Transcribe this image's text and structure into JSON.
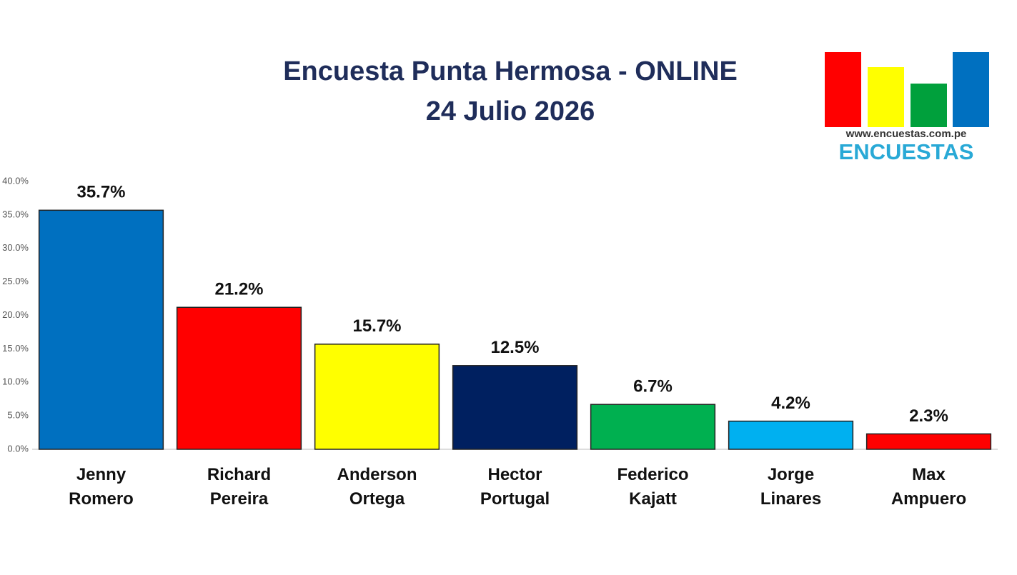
{
  "chart_data": {
    "type": "bar",
    "title": "Encuesta Punta Hermosa - ONLINE",
    "subtitle": "24 Julio 2026",
    "categories": [
      "Jenny Romero",
      "Richard Pereira",
      "Anderson Ortega",
      "Hector Portugal",
      "Federico Kajatt",
      "Jorge Linares",
      "Max Ampuero"
    ],
    "values": [
      35.7,
      21.2,
      15.7,
      12.5,
      6.7,
      4.2,
      2.3
    ],
    "value_labels": [
      "35.7%",
      "21.2%",
      "15.7%",
      "12.5%",
      "6.7%",
      "4.2%",
      "2.3%"
    ],
    "colors": [
      "#0070c0",
      "#ff0000",
      "#ffff00",
      "#002060",
      "#00b050",
      "#00b0f0",
      "#ff0000"
    ],
    "ylim": [
      0,
      40
    ],
    "yticks": [
      {
        "value": 0,
        "label": "0.0%"
      },
      {
        "value": 5,
        "label": "5.0%"
      },
      {
        "value": 10,
        "label": "10.0%"
      },
      {
        "value": 15,
        "label": "15.0%"
      },
      {
        "value": 20,
        "label": "20.0%"
      },
      {
        "value": 25,
        "label": "25.0%"
      },
      {
        "value": 30,
        "label": "30.0%"
      },
      {
        "value": 35,
        "label": "35.0%"
      },
      {
        "value": 40,
        "label": "40.0%"
      }
    ],
    "grid": false
  },
  "logo": {
    "url": "www.encuestas.com.pe",
    "name": "ENCUESTAS"
  }
}
